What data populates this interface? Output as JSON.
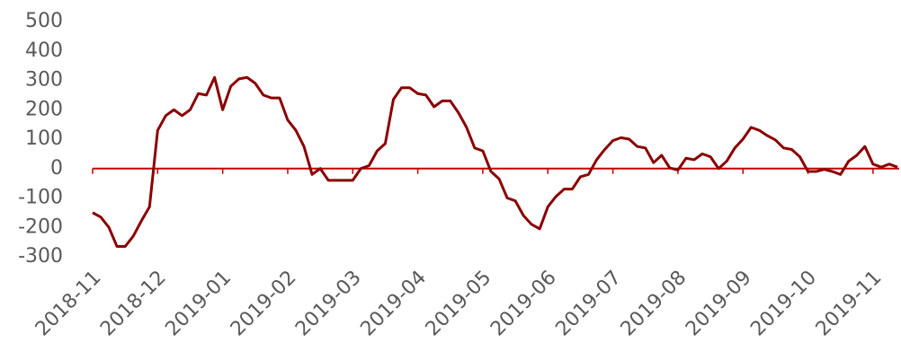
{
  "chart_data": {
    "type": "line",
    "categories": [
      "2018-11",
      null,
      null,
      null,
      null,
      null,
      null,
      null,
      "2018-12",
      null,
      null,
      null,
      null,
      null,
      null,
      null,
      "2019-01",
      null,
      null,
      null,
      null,
      null,
      null,
      null,
      "2019-02",
      null,
      null,
      null,
      null,
      null,
      null,
      null,
      "2019-03",
      null,
      null,
      null,
      null,
      null,
      null,
      null,
      "2019-04",
      null,
      null,
      null,
      null,
      null,
      null,
      null,
      "2019-05",
      null,
      null,
      null,
      null,
      null,
      null,
      null,
      "2019-06",
      null,
      null,
      null,
      null,
      null,
      null,
      null,
      "2019-07",
      null,
      null,
      null,
      null,
      null,
      null,
      null,
      "2019-08",
      null,
      null,
      null,
      null,
      null,
      null,
      null,
      "2019-09",
      null,
      null,
      null,
      null,
      null,
      null,
      null,
      "2019-10",
      null,
      null,
      null,
      null,
      null,
      null,
      null,
      "2019-11",
      null,
      null,
      null
    ],
    "series": [
      {
        "color": "#8b0000",
        "values": [
          -150,
          -165,
          -200,
          -265,
          -265,
          -230,
          -178,
          -130,
          130,
          180,
          200,
          180,
          200,
          255,
          250,
          310,
          200,
          280,
          305,
          310,
          290,
          250,
          240,
          240,
          165,
          130,
          75,
          -20,
          0,
          -40,
          -40,
          -40,
          -40,
          0,
          10,
          60,
          85,
          235,
          275,
          275,
          255,
          250,
          210,
          230,
          230,
          190,
          140,
          70,
          60,
          -10,
          -35,
          -100,
          -110,
          -160,
          -190,
          -205,
          -130,
          -95,
          -70,
          -70,
          -28,
          -20,
          30,
          65,
          95,
          105,
          100,
          75,
          70,
          20,
          45,
          2,
          -5,
          35,
          30,
          50,
          40,
          0,
          25,
          70,
          100,
          140,
          130,
          112,
          97,
          70,
          65,
          40,
          -10,
          -10,
          -3,
          -10,
          -20,
          25,
          45,
          75,
          15,
          5,
          15,
          5
        ]
      }
    ],
    "ylim": [
      -300,
      500
    ],
    "yticks": [
      -300,
      -200,
      -100,
      0,
      100,
      200,
      300,
      400,
      500
    ],
    "zero_line_color": "#c00000"
  }
}
